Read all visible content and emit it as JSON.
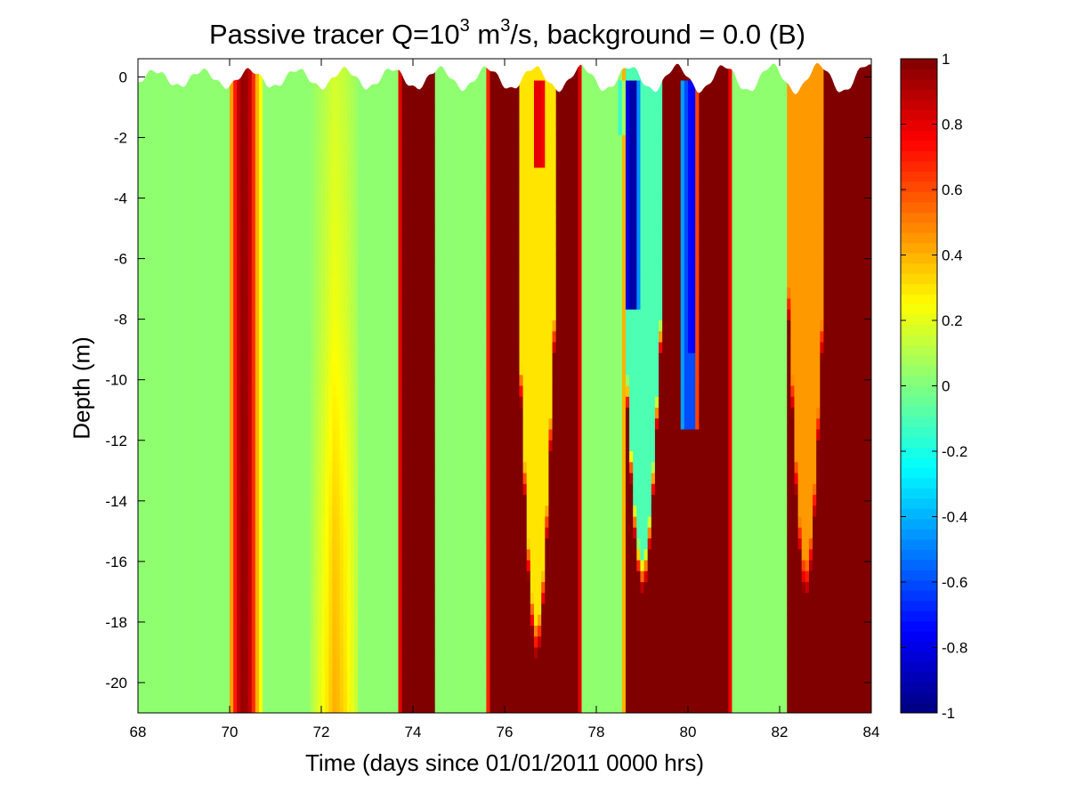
{
  "chart_data": {
    "type": "heatmap",
    "title": {
      "pre": "Passive tracer Q=10",
      "exp1": "3",
      "mid": " m",
      "exp2": "3",
      "post": "/s, background = 0.0 (B)"
    },
    "xlabel": "Time (days since 01/01/2011 0000 hrs)",
    "ylabel": "Depth (m)",
    "xlim": [
      68,
      84
    ],
    "ylim": [
      -21,
      0.6
    ],
    "xticks": [
      68,
      70,
      72,
      74,
      76,
      78,
      80,
      82,
      84
    ],
    "yticks": [
      0,
      -2,
      -4,
      -6,
      -8,
      -10,
      -12,
      -14,
      -16,
      -18,
      -20
    ],
    "colormap": "jet",
    "clim": [
      -1,
      1
    ],
    "colorbar_ticks": [
      1,
      0.8,
      0.6,
      0.4,
      0.2,
      0,
      -0.2,
      -0.4,
      -0.6,
      -0.8,
      -1
    ],
    "grid": false,
    "background_value": 0.03,
    "time_bands": [
      {
        "t0": 70.0,
        "t1": 70.75,
        "profile": [
          [
            0,
            0.3
          ],
          [
            0.22,
            0.85
          ],
          [
            0.42,
            0.98
          ],
          [
            0.62,
            0.85
          ],
          [
            0.8,
            0.4
          ],
          [
            1,
            0.1
          ]
        ]
      },
      {
        "t0": 71.8,
        "t1": 72.8,
        "profile": [
          [
            0,
            0.1
          ],
          [
            0.3,
            0.28
          ],
          [
            0.5,
            0.42
          ],
          [
            0.75,
            0.3
          ],
          [
            1,
            0.12
          ]
        ],
        "depth_scale": [
          [
            0,
            0.4
          ],
          [
            -8,
            0.55
          ],
          [
            -15,
            0.85
          ],
          [
            -21,
            1.0
          ]
        ]
      },
      {
        "t0": 73.68,
        "t1": 74.5,
        "profile": [
          [
            0,
            0.35
          ],
          [
            0.07,
            1
          ],
          [
            0.93,
            1
          ],
          [
            1,
            0.35
          ]
        ]
      },
      {
        "t0": 75.6,
        "t1": 77.7,
        "profile": [
          [
            0,
            0.4
          ],
          [
            0.04,
            1
          ],
          [
            0.96,
            1
          ],
          [
            1,
            0.3
          ]
        ],
        "notch": {
          "t0": 76.32,
          "t1": 77.08,
          "top": 0,
          "bottom_center": -18.0,
          "bottom_edge": -8.0,
          "value": 0.3
        }
      },
      {
        "t0": 78.6,
        "t1": 80.95,
        "profile": [
          [
            0,
            0.4
          ],
          [
            0.02,
            1
          ],
          [
            0.98,
            1
          ],
          [
            1,
            0.4
          ]
        ],
        "notch": {
          "t0": 78.62,
          "t1": 79.4,
          "top": 0,
          "bottom_center": -15.8,
          "bottom_edge": -8.0,
          "value": -0.1
        }
      },
      {
        "t0": 82.15,
        "t1": 84.0,
        "profile": [
          [
            0,
            0.5
          ],
          [
            0.02,
            1
          ],
          [
            1,
            1
          ]
        ],
        "notch": {
          "t0": 82.2,
          "t1": 82.95,
          "top": 0,
          "bottom_center": -16.0,
          "bottom_edge": -7.0,
          "value": 0.45
        }
      }
    ],
    "cold_spots": [
      {
        "t0": 78.62,
        "t1": 78.95,
        "d0": 0,
        "d1": -7.6,
        "value": -0.92
      },
      {
        "t0": 79.8,
        "t1": 80.22,
        "d0": 0,
        "d1": -11.5,
        "value": -0.6
      },
      {
        "t0": 80.0,
        "t1": 80.2,
        "d0": 0,
        "d1": -9.0,
        "value": -0.75
      },
      {
        "t0": 78.45,
        "t1": 78.62,
        "d0": 0,
        "d1": -2.0,
        "value": -0.15
      },
      {
        "t0": 76.6,
        "t1": 76.9,
        "d0": 0,
        "d1": -3.0,
        "value": 0.8
      }
    ]
  }
}
